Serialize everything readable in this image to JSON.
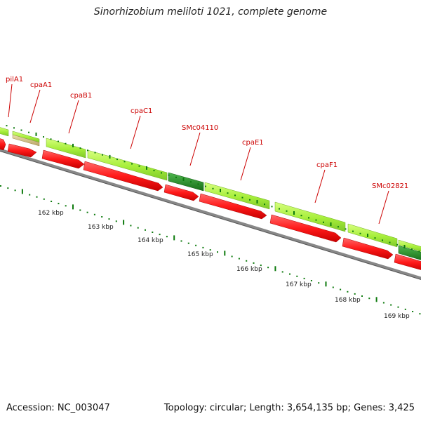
{
  "title": "Sinorhizobium meliloti 1021, complete genome",
  "footer": {
    "accession": "Accession: NC_003047",
    "summary": "Topology: circular; Length: 3,654,135 bp; Genes: 3,425"
  },
  "colors": {
    "gene_label": "#cc0000",
    "cds": "#ff1a1a",
    "gene_light": "#a6ee3a",
    "gene_dark": "#1f8a1f",
    "gene_tan": "#c8b680",
    "backbone": "#777777",
    "tick": "#0d7a0d"
  },
  "scale_labels": [
    "162 kbp",
    "163 kbp",
    "164 kbp",
    "165 kbp",
    "166 kbp",
    "167 kbp",
    "168 kbp",
    "169 kbp"
  ],
  "genes": [
    {
      "name": "pilA1"
    },
    {
      "name": "cpaA1"
    },
    {
      "name": "cpaB1"
    },
    {
      "name": "cpaC1"
    },
    {
      "name": "SMc04110"
    },
    {
      "name": "cpaE1"
    },
    {
      "name": "cpaF1"
    },
    {
      "name": "SMc02821"
    }
  ]
}
